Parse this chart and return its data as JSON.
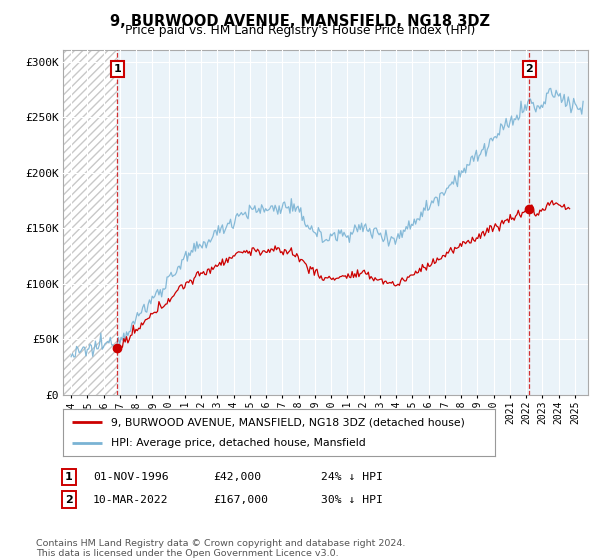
{
  "title": "9, BURWOOD AVENUE, MANSFIELD, NG18 3DZ",
  "subtitle": "Price paid vs. HM Land Registry's House Price Index (HPI)",
  "ylim": [
    0,
    310000
  ],
  "yticks": [
    0,
    50000,
    100000,
    150000,
    200000,
    250000,
    300000
  ],
  "ytick_labels": [
    "£0",
    "£50K",
    "£100K",
    "£150K",
    "£200K",
    "£250K",
    "£300K"
  ],
  "hpi_color": "#7ab3d4",
  "property_color": "#cc0000",
  "grid_color": "#d8e8f0",
  "bg_color": "#eaf3f9",
  "point1": {
    "date_num": 1996.84,
    "value": 42000,
    "date_str": "01-NOV-1996",
    "price": "£42,000",
    "note": "24% ↓ HPI"
  },
  "point2": {
    "date_num": 2022.19,
    "value": 167000,
    "date_str": "10-MAR-2022",
    "price": "£167,000",
    "note": "30% ↓ HPI"
  },
  "legend_line1": "9, BURWOOD AVENUE, MANSFIELD, NG18 3DZ (detached house)",
  "legend_line2": "HPI: Average price, detached house, Mansfield",
  "footer": "Contains HM Land Registry data © Crown copyright and database right 2024.\nThis data is licensed under the Open Government Licence v3.0."
}
